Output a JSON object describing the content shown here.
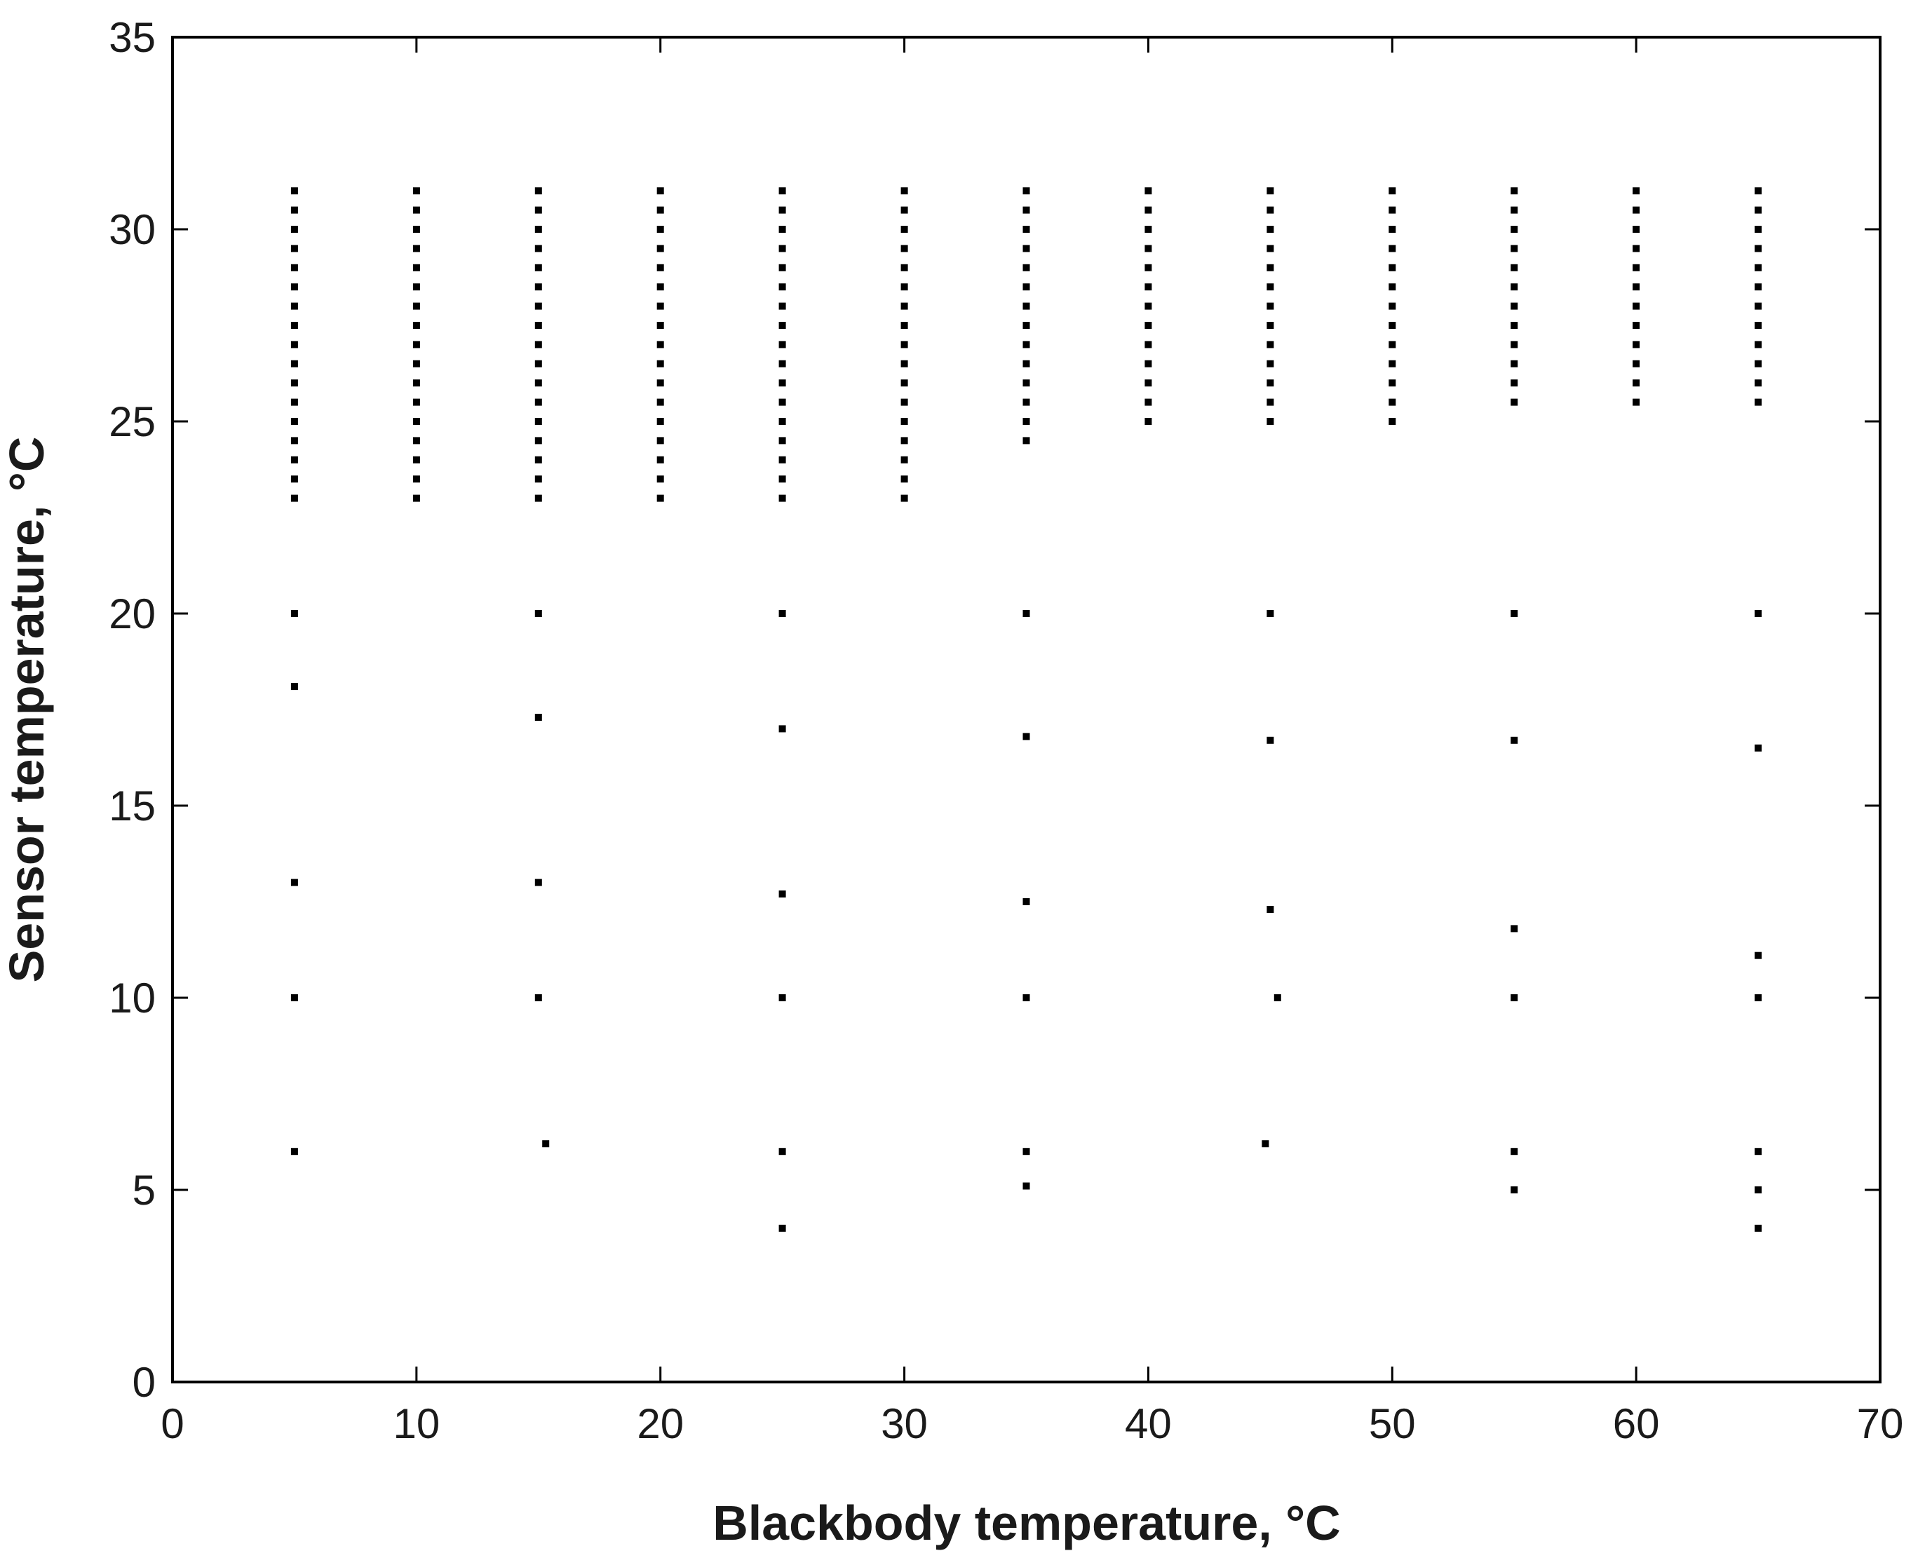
{
  "chart_data": {
    "type": "scatter",
    "title": "",
    "xlabel": "Blackbody temperature, °C",
    "ylabel": "Sensor temperature, °C",
    "xlim": [
      0,
      70
    ],
    "ylim": [
      0,
      35
    ],
    "xticks": [
      0,
      10,
      20,
      30,
      40,
      50,
      60,
      70
    ],
    "yticks": [
      0,
      5,
      10,
      15,
      20,
      25,
      30,
      35
    ],
    "grid": false,
    "legend": "none",
    "marker_color": "#000000",
    "series": [
      {
        "points": [
          [
            5,
            23.0
          ],
          [
            5,
            23.5
          ],
          [
            5,
            24.0
          ],
          [
            5,
            24.5
          ],
          [
            5,
            25.0
          ],
          [
            5,
            25.5
          ],
          [
            5,
            26.0
          ],
          [
            5,
            26.5
          ],
          [
            5,
            27.0
          ],
          [
            5,
            27.5
          ],
          [
            5,
            28.0
          ],
          [
            5,
            28.5
          ],
          [
            5,
            29.0
          ],
          [
            5,
            29.5
          ],
          [
            5,
            30.0
          ],
          [
            5,
            30.5
          ],
          [
            5,
            31.0
          ],
          [
            10,
            23.0
          ],
          [
            10,
            23.5
          ],
          [
            10,
            24.0
          ],
          [
            10,
            24.5
          ],
          [
            10,
            25.0
          ],
          [
            10,
            25.5
          ],
          [
            10,
            26.0
          ],
          [
            10,
            26.5
          ],
          [
            10,
            27.0
          ],
          [
            10,
            27.5
          ],
          [
            10,
            28.0
          ],
          [
            10,
            28.5
          ],
          [
            10,
            29.0
          ],
          [
            10,
            29.5
          ],
          [
            10,
            30.0
          ],
          [
            10,
            30.5
          ],
          [
            10,
            31.0
          ],
          [
            15,
            23.0
          ],
          [
            15,
            23.5
          ],
          [
            15,
            24.0
          ],
          [
            15,
            24.5
          ],
          [
            15,
            25.0
          ],
          [
            15,
            25.5
          ],
          [
            15,
            26.0
          ],
          [
            15,
            26.5
          ],
          [
            15,
            27.0
          ],
          [
            15,
            27.5
          ],
          [
            15,
            28.0
          ],
          [
            15,
            28.5
          ],
          [
            15,
            29.0
          ],
          [
            15,
            29.5
          ],
          [
            15,
            30.0
          ],
          [
            15,
            30.5
          ],
          [
            15,
            31.0
          ],
          [
            20,
            23.0
          ],
          [
            20,
            23.5
          ],
          [
            20,
            24.0
          ],
          [
            20,
            24.5
          ],
          [
            20,
            25.0
          ],
          [
            20,
            25.5
          ],
          [
            20,
            26.0
          ],
          [
            20,
            26.5
          ],
          [
            20,
            27.0
          ],
          [
            20,
            27.5
          ],
          [
            20,
            28.0
          ],
          [
            20,
            28.5
          ],
          [
            20,
            29.0
          ],
          [
            20,
            29.5
          ],
          [
            20,
            30.0
          ],
          [
            20,
            30.5
          ],
          [
            20,
            31.0
          ],
          [
            25,
            23.0
          ],
          [
            25,
            23.5
          ],
          [
            25,
            24.0
          ],
          [
            25,
            24.5
          ],
          [
            25,
            25.0
          ],
          [
            25,
            25.5
          ],
          [
            25,
            26.0
          ],
          [
            25,
            26.5
          ],
          [
            25,
            27.0
          ],
          [
            25,
            27.5
          ],
          [
            25,
            28.0
          ],
          [
            25,
            28.5
          ],
          [
            25,
            29.0
          ],
          [
            25,
            29.5
          ],
          [
            25,
            30.0
          ],
          [
            25,
            30.5
          ],
          [
            25,
            31.0
          ],
          [
            30,
            23.0
          ],
          [
            30,
            23.5
          ],
          [
            30,
            24.0
          ],
          [
            30,
            24.5
          ],
          [
            30,
            25.0
          ],
          [
            30,
            25.5
          ],
          [
            30,
            26.0
          ],
          [
            30,
            26.5
          ],
          [
            30,
            27.0
          ],
          [
            30,
            27.5
          ],
          [
            30,
            28.0
          ],
          [
            30,
            28.5
          ],
          [
            30,
            29.0
          ],
          [
            30,
            29.5
          ],
          [
            30,
            30.0
          ],
          [
            30,
            30.5
          ],
          [
            30,
            31.0
          ],
          [
            35,
            24.5
          ],
          [
            35,
            25.0
          ],
          [
            35,
            25.5
          ],
          [
            35,
            26.0
          ],
          [
            35,
            26.5
          ],
          [
            35,
            27.0
          ],
          [
            35,
            27.5
          ],
          [
            35,
            28.0
          ],
          [
            35,
            28.5
          ],
          [
            35,
            29.0
          ],
          [
            35,
            29.5
          ],
          [
            35,
            30.0
          ],
          [
            35,
            30.5
          ],
          [
            35,
            31.0
          ],
          [
            40,
            25.0
          ],
          [
            40,
            25.5
          ],
          [
            40,
            26.0
          ],
          [
            40,
            26.5
          ],
          [
            40,
            27.0
          ],
          [
            40,
            27.5
          ],
          [
            40,
            28.0
          ],
          [
            40,
            28.5
          ],
          [
            40,
            29.0
          ],
          [
            40,
            29.5
          ],
          [
            40,
            30.0
          ],
          [
            40,
            30.5
          ],
          [
            40,
            31.0
          ],
          [
            45,
            25.0
          ],
          [
            45,
            25.5
          ],
          [
            45,
            26.0
          ],
          [
            45,
            26.5
          ],
          [
            45,
            27.0
          ],
          [
            45,
            27.5
          ],
          [
            45,
            28.0
          ],
          [
            45,
            28.5
          ],
          [
            45,
            29.0
          ],
          [
            45,
            29.5
          ],
          [
            45,
            30.0
          ],
          [
            45,
            30.5
          ],
          [
            45,
            31.0
          ],
          [
            50,
            25.0
          ],
          [
            50,
            25.5
          ],
          [
            50,
            26.0
          ],
          [
            50,
            26.5
          ],
          [
            50,
            27.0
          ],
          [
            50,
            27.5
          ],
          [
            50,
            28.0
          ],
          [
            50,
            28.5
          ],
          [
            50,
            29.0
          ],
          [
            50,
            29.5
          ],
          [
            50,
            30.0
          ],
          [
            50,
            30.5
          ],
          [
            50,
            31.0
          ],
          [
            55,
            25.5
          ],
          [
            55,
            26.0
          ],
          [
            55,
            26.5
          ],
          [
            55,
            27.0
          ],
          [
            55,
            27.5
          ],
          [
            55,
            28.0
          ],
          [
            55,
            28.5
          ],
          [
            55,
            29.0
          ],
          [
            55,
            29.5
          ],
          [
            55,
            30.0
          ],
          [
            55,
            30.5
          ],
          [
            55,
            31.0
          ],
          [
            60,
            25.5
          ],
          [
            60,
            26.0
          ],
          [
            60,
            26.5
          ],
          [
            60,
            27.0
          ],
          [
            60,
            27.5
          ],
          [
            60,
            28.0
          ],
          [
            60,
            28.5
          ],
          [
            60,
            29.0
          ],
          [
            60,
            29.5
          ],
          [
            60,
            30.0
          ],
          [
            60,
            30.5
          ],
          [
            60,
            31.0
          ],
          [
            65,
            25.5
          ],
          [
            65,
            26.0
          ],
          [
            65,
            26.5
          ],
          [
            65,
            27.0
          ],
          [
            65,
            27.5
          ],
          [
            65,
            28.0
          ],
          [
            65,
            28.5
          ],
          [
            65,
            29.0
          ],
          [
            65,
            29.5
          ],
          [
            65,
            30.0
          ],
          [
            65,
            30.5
          ],
          [
            65,
            31.0
          ],
          [
            5,
            20.0
          ],
          [
            5,
            18.1
          ],
          [
            5,
            13.0
          ],
          [
            5,
            10.0
          ],
          [
            5,
            6.0
          ],
          [
            15,
            20.0
          ],
          [
            15,
            17.3
          ],
          [
            15,
            13.0
          ],
          [
            15,
            10.0
          ],
          [
            15.3,
            6.2
          ],
          [
            25,
            20.0
          ],
          [
            25,
            17.0
          ],
          [
            25,
            12.7
          ],
          [
            25,
            10.0
          ],
          [
            25,
            6.0
          ],
          [
            25,
            4.0
          ],
          [
            35,
            20.0
          ],
          [
            35,
            16.8
          ],
          [
            35,
            12.5
          ],
          [
            35,
            10.0
          ],
          [
            35,
            6.0
          ],
          [
            35,
            5.1
          ],
          [
            45,
            20.0
          ],
          [
            45,
            16.7
          ],
          [
            45,
            12.3
          ],
          [
            45.3,
            10.0
          ],
          [
            44.8,
            6.2
          ],
          [
            55,
            20.0
          ],
          [
            55,
            16.7
          ],
          [
            55,
            11.8
          ],
          [
            55,
            10.0
          ],
          [
            55,
            6.0
          ],
          [
            55,
            5.0
          ],
          [
            65,
            20.0
          ],
          [
            65,
            16.5
          ],
          [
            65,
            11.1
          ],
          [
            65,
            10.0
          ],
          [
            65,
            6.0
          ],
          [
            65,
            5.0
          ],
          [
            65,
            4.0
          ]
        ]
      }
    ]
  }
}
